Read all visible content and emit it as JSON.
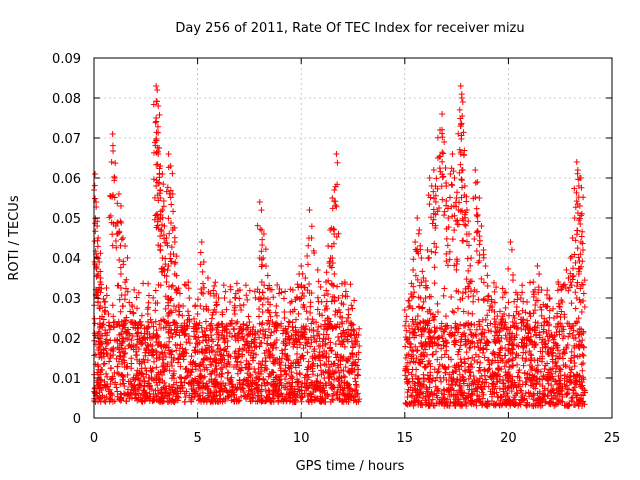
{
  "chart_data": {
    "type": "scatter",
    "title": "Day 256 of 2011, Rate Of TEC Index for receiver mizu",
    "xlabel": "GPS time / hours",
    "ylabel": "ROTI / TECUs",
    "xlim": [
      0,
      25
    ],
    "ylim": [
      0,
      0.09
    ],
    "xticks": [
      0,
      5,
      10,
      15,
      20,
      25
    ],
    "xtick_labels": [
      "0",
      "5",
      "10",
      "15",
      "20",
      "25"
    ],
    "yticks": [
      0,
      0.01,
      0.02,
      0.03,
      0.04,
      0.05,
      0.06,
      0.07,
      0.08,
      0.09
    ],
    "ytick_labels": [
      "0",
      "0.01",
      "0.02",
      "0.03",
      "0.04",
      "0.05",
      "0.06",
      "0.07",
      "0.08",
      "0.09"
    ],
    "grid": true,
    "marker": "+",
    "color": "#ff0000",
    "series": [
      {
        "name": "ROTI",
        "points": [
          [
            0.0,
            0.057
          ],
          [
            0.05,
            0.061
          ],
          [
            0.1,
            0.054
          ],
          [
            0.15,
            0.048
          ],
          [
            0.2,
            0.045
          ],
          [
            0.25,
            0.039
          ],
          [
            0.3,
            0.034
          ],
          [
            0.1,
            0.041
          ],
          [
            0.2,
            0.036
          ],
          [
            0.3,
            0.028
          ],
          [
            0.5,
            0.029
          ],
          [
            0.7,
            0.026
          ],
          [
            0.85,
            0.064
          ],
          [
            0.9,
            0.071
          ],
          [
            1.0,
            0.06
          ],
          [
            1.05,
            0.048
          ],
          [
            1.2,
            0.056
          ],
          [
            1.3,
            0.053
          ],
          [
            1.4,
            0.045
          ],
          [
            1.5,
            0.043
          ],
          [
            1.3,
            0.036
          ],
          [
            1.4,
            0.028
          ],
          [
            2.2,
            0.024
          ],
          [
            2.6,
            0.026
          ],
          [
            3.0,
            0.083
          ],
          [
            3.05,
            0.082
          ],
          [
            3.1,
            0.078
          ],
          [
            3.0,
            0.075
          ],
          [
            3.1,
            0.066
          ],
          [
            3.2,
            0.063
          ],
          [
            3.3,
            0.061
          ],
          [
            3.0,
            0.058
          ],
          [
            3.2,
            0.055
          ],
          [
            3.3,
            0.052
          ],
          [
            3.1,
            0.05
          ],
          [
            3.4,
            0.048
          ],
          [
            3.5,
            0.045
          ],
          [
            3.6,
            0.066
          ],
          [
            3.7,
            0.063
          ],
          [
            3.8,
            0.056
          ],
          [
            3.8,
            0.047
          ],
          [
            3.9,
            0.044
          ],
          [
            3.7,
            0.041
          ],
          [
            3.6,
            0.038
          ],
          [
            3.9,
            0.036
          ],
          [
            3.5,
            0.034
          ],
          [
            3.3,
            0.04
          ],
          [
            3.6,
            0.03
          ],
          [
            4.0,
            0.032
          ],
          [
            4.3,
            0.028
          ],
          [
            4.6,
            0.03
          ],
          [
            5.0,
            0.026
          ],
          [
            5.2,
            0.044
          ],
          [
            5.3,
            0.039
          ],
          [
            5.5,
            0.035
          ],
          [
            5.8,
            0.033
          ],
          [
            5.9,
            0.031
          ],
          [
            6.3,
            0.03
          ],
          [
            6.8,
            0.026
          ],
          [
            7.1,
            0.027
          ],
          [
            7.5,
            0.024
          ],
          [
            8.0,
            0.054
          ],
          [
            8.1,
            0.047
          ],
          [
            8.2,
            0.046
          ],
          [
            8.0,
            0.04
          ],
          [
            8.3,
            0.038
          ],
          [
            8.1,
            0.034
          ],
          [
            8.2,
            0.03
          ],
          [
            8.4,
            0.029
          ],
          [
            8.8,
            0.028
          ],
          [
            9.2,
            0.025
          ],
          [
            9.6,
            0.032
          ],
          [
            9.8,
            0.03
          ],
          [
            9.9,
            0.036
          ],
          [
            10.0,
            0.038
          ],
          [
            10.2,
            0.035
          ],
          [
            10.4,
            0.052
          ],
          [
            10.5,
            0.045
          ],
          [
            10.8,
            0.037
          ],
          [
            11.2,
            0.034
          ],
          [
            11.3,
            0.043
          ],
          [
            11.4,
            0.047
          ],
          [
            11.5,
            0.055
          ],
          [
            11.6,
            0.057
          ],
          [
            11.7,
            0.066
          ],
          [
            11.5,
            0.04
          ],
          [
            11.6,
            0.036
          ],
          [
            11.8,
            0.03
          ],
          [
            11.2,
            0.028
          ],
          [
            12.0,
            0.019
          ],
          [
            12.3,
            0.021
          ],
          [
            12.6,
            0.02
          ],
          [
            12.8,
            0.018
          ],
          [
            15.0,
            0.027
          ],
          [
            15.2,
            0.023
          ],
          [
            15.3,
            0.031
          ],
          [
            15.4,
            0.037
          ],
          [
            15.5,
            0.044
          ],
          [
            15.6,
            0.05
          ],
          [
            15.7,
            0.047
          ],
          [
            15.8,
            0.04
          ],
          [
            15.9,
            0.035
          ],
          [
            16.0,
            0.03
          ],
          [
            16.1,
            0.042
          ],
          [
            16.2,
            0.06
          ],
          [
            16.3,
            0.058
          ],
          [
            16.4,
            0.062
          ],
          [
            16.5,
            0.054
          ],
          [
            16.6,
            0.065
          ],
          [
            16.7,
            0.072
          ],
          [
            16.8,
            0.076
          ],
          [
            16.9,
            0.069
          ],
          [
            17.0,
            0.058
          ],
          [
            17.1,
            0.05
          ],
          [
            17.2,
            0.061
          ],
          [
            17.3,
            0.066
          ],
          [
            17.4,
            0.06
          ],
          [
            17.5,
            0.055
          ],
          [
            17.6,
            0.052
          ],
          [
            17.7,
            0.083
          ],
          [
            17.75,
            0.08
          ],
          [
            17.8,
            0.079
          ],
          [
            17.7,
            0.066
          ],
          [
            17.8,
            0.062
          ],
          [
            17.9,
            0.058
          ],
          [
            18.0,
            0.052
          ],
          [
            18.1,
            0.046
          ],
          [
            18.2,
            0.04
          ],
          [
            18.4,
            0.062
          ],
          [
            18.5,
            0.059
          ],
          [
            18.6,
            0.055
          ],
          [
            18.7,
            0.048
          ],
          [
            18.8,
            0.042
          ],
          [
            18.9,
            0.038
          ],
          [
            19.0,
            0.033
          ],
          [
            19.2,
            0.027
          ],
          [
            19.4,
            0.024
          ],
          [
            19.6,
            0.022
          ],
          [
            20.1,
            0.044
          ],
          [
            20.3,
            0.025
          ],
          [
            20.6,
            0.03
          ],
          [
            20.9,
            0.029
          ],
          [
            21.2,
            0.034
          ],
          [
            21.4,
            0.038
          ],
          [
            21.6,
            0.032
          ],
          [
            21.8,
            0.028
          ],
          [
            22.0,
            0.03
          ],
          [
            22.2,
            0.025
          ],
          [
            22.4,
            0.034
          ],
          [
            22.6,
            0.029
          ],
          [
            22.8,
            0.037
          ],
          [
            23.0,
            0.04
          ],
          [
            23.1,
            0.045
          ],
          [
            23.2,
            0.05
          ],
          [
            23.3,
            0.064
          ],
          [
            23.35,
            0.062
          ],
          [
            23.4,
            0.058
          ],
          [
            23.5,
            0.06
          ],
          [
            23.45,
            0.053
          ],
          [
            23.5,
            0.044
          ],
          [
            23.6,
            0.042
          ],
          [
            23.4,
            0.036
          ],
          [
            23.3,
            0.03
          ]
        ],
        "dense_bands": [
          {
            "x_range": [
              0.0,
              12.8
            ],
            "y_range": [
              0.004,
              0.024
            ]
          },
          {
            "x_range": [
              15.0,
              23.7
            ],
            "y_range": [
              0.003,
              0.024
            ]
          }
        ]
      }
    ]
  }
}
